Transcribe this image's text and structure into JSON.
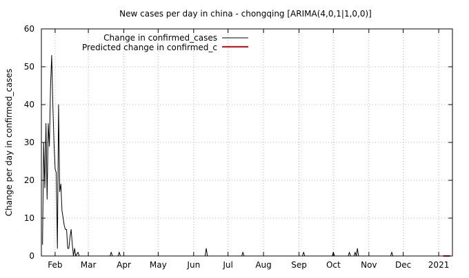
{
  "chart_data": {
    "type": "line",
    "title": "New cases per day in china - chongqing [ARIMA(4,0,1|1,0,0)]",
    "xlabel": "",
    "ylabel": "Change per day in confirmed_cases",
    "ylim": [
      0,
      60
    ],
    "xlim": [
      "2020-01-20",
      "2021-01-13"
    ],
    "grid": true,
    "grid_style": "dotted",
    "legend_position": "top-left",
    "x_tick_labels": [
      {
        "date": "2020-02-01",
        "label": "Feb"
      },
      {
        "date": "2020-03-01",
        "label": "Mar"
      },
      {
        "date": "2020-04-01",
        "label": "Apr"
      },
      {
        "date": "2020-05-01",
        "label": "May"
      },
      {
        "date": "2020-06-01",
        "label": "Jun"
      },
      {
        "date": "2020-07-01",
        "label": "Jul"
      },
      {
        "date": "2020-08-01",
        "label": "Aug"
      },
      {
        "date": "2020-09-01",
        "label": "Sep"
      },
      {
        "date": "2020-10-01",
        "label": "Oct"
      },
      {
        "date": "2020-11-01",
        "label": "Nov"
      },
      {
        "date": "2020-12-01",
        "label": "Dec"
      },
      {
        "date": "2021-01-01",
        "label": "2021"
      }
    ],
    "y_ticks": [
      0,
      10,
      20,
      30,
      40,
      50,
      60
    ],
    "series": [
      {
        "name": "Change in confirmed_cases",
        "color": "#000000",
        "points": [
          [
            "2020-01-21",
            3
          ],
          [
            "2020-01-22",
            30
          ],
          [
            "2020-01-23",
            18
          ],
          [
            "2020-01-24",
            35
          ],
          [
            "2020-01-25",
            15
          ],
          [
            "2020-01-26",
            35
          ],
          [
            "2020-01-27",
            29
          ],
          [
            "2020-01-28",
            45
          ],
          [
            "2020-01-29",
            53
          ],
          [
            "2020-01-30",
            40
          ],
          [
            "2020-01-31",
            30
          ],
          [
            "2020-02-01",
            23
          ],
          [
            "2020-02-02",
            22
          ],
          [
            "2020-02-03",
            2
          ],
          [
            "2020-02-04",
            40
          ],
          [
            "2020-02-05",
            17
          ],
          [
            "2020-02-06",
            19
          ],
          [
            "2020-02-07",
            12
          ],
          [
            "2020-02-08",
            10
          ],
          [
            "2020-02-09",
            8
          ],
          [
            "2020-02-10",
            7
          ],
          [
            "2020-02-11",
            7
          ],
          [
            "2020-02-12",
            2
          ],
          [
            "2020-02-13",
            2
          ],
          [
            "2020-02-14",
            5
          ],
          [
            "2020-02-15",
            7
          ],
          [
            "2020-02-16",
            3
          ],
          [
            "2020-02-17",
            0
          ],
          [
            "2020-02-18",
            2
          ],
          [
            "2020-02-19",
            0
          ],
          [
            "2020-02-21",
            1
          ],
          [
            "2020-02-22",
            0
          ],
          [
            "2020-03-20",
            0
          ],
          [
            "2020-03-21",
            1
          ],
          [
            "2020-03-22",
            0
          ],
          [
            "2020-03-27",
            0
          ],
          [
            "2020-03-28",
            1
          ],
          [
            "2020-03-29",
            0
          ],
          [
            "2020-06-11",
            0
          ],
          [
            "2020-06-12",
            2
          ],
          [
            "2020-06-13",
            0
          ],
          [
            "2020-07-13",
            0
          ],
          [
            "2020-07-14",
            1
          ],
          [
            "2020-07-15",
            0
          ],
          [
            "2020-09-04",
            0
          ],
          [
            "2020-09-05",
            1
          ],
          [
            "2020-09-06",
            0
          ],
          [
            "2020-09-30",
            0
          ],
          [
            "2020-10-01",
            1
          ],
          [
            "2020-10-02",
            0
          ],
          [
            "2020-10-14",
            0
          ],
          [
            "2020-10-15",
            1
          ],
          [
            "2020-10-16",
            0
          ],
          [
            "2020-10-19",
            0
          ],
          [
            "2020-10-20",
            1
          ],
          [
            "2020-10-21",
            0
          ],
          [
            "2020-10-22",
            2
          ],
          [
            "2020-10-23",
            0
          ],
          [
            "2020-11-20",
            0
          ],
          [
            "2020-11-21",
            1
          ],
          [
            "2020-11-22",
            0
          ],
          [
            "2021-01-11",
            0
          ]
        ]
      },
      {
        "name": "Predicted change in confirmed_c",
        "color": "#ff0000",
        "points": [
          [
            "2021-01-05",
            0
          ],
          [
            "2021-01-11",
            0
          ]
        ]
      }
    ]
  }
}
